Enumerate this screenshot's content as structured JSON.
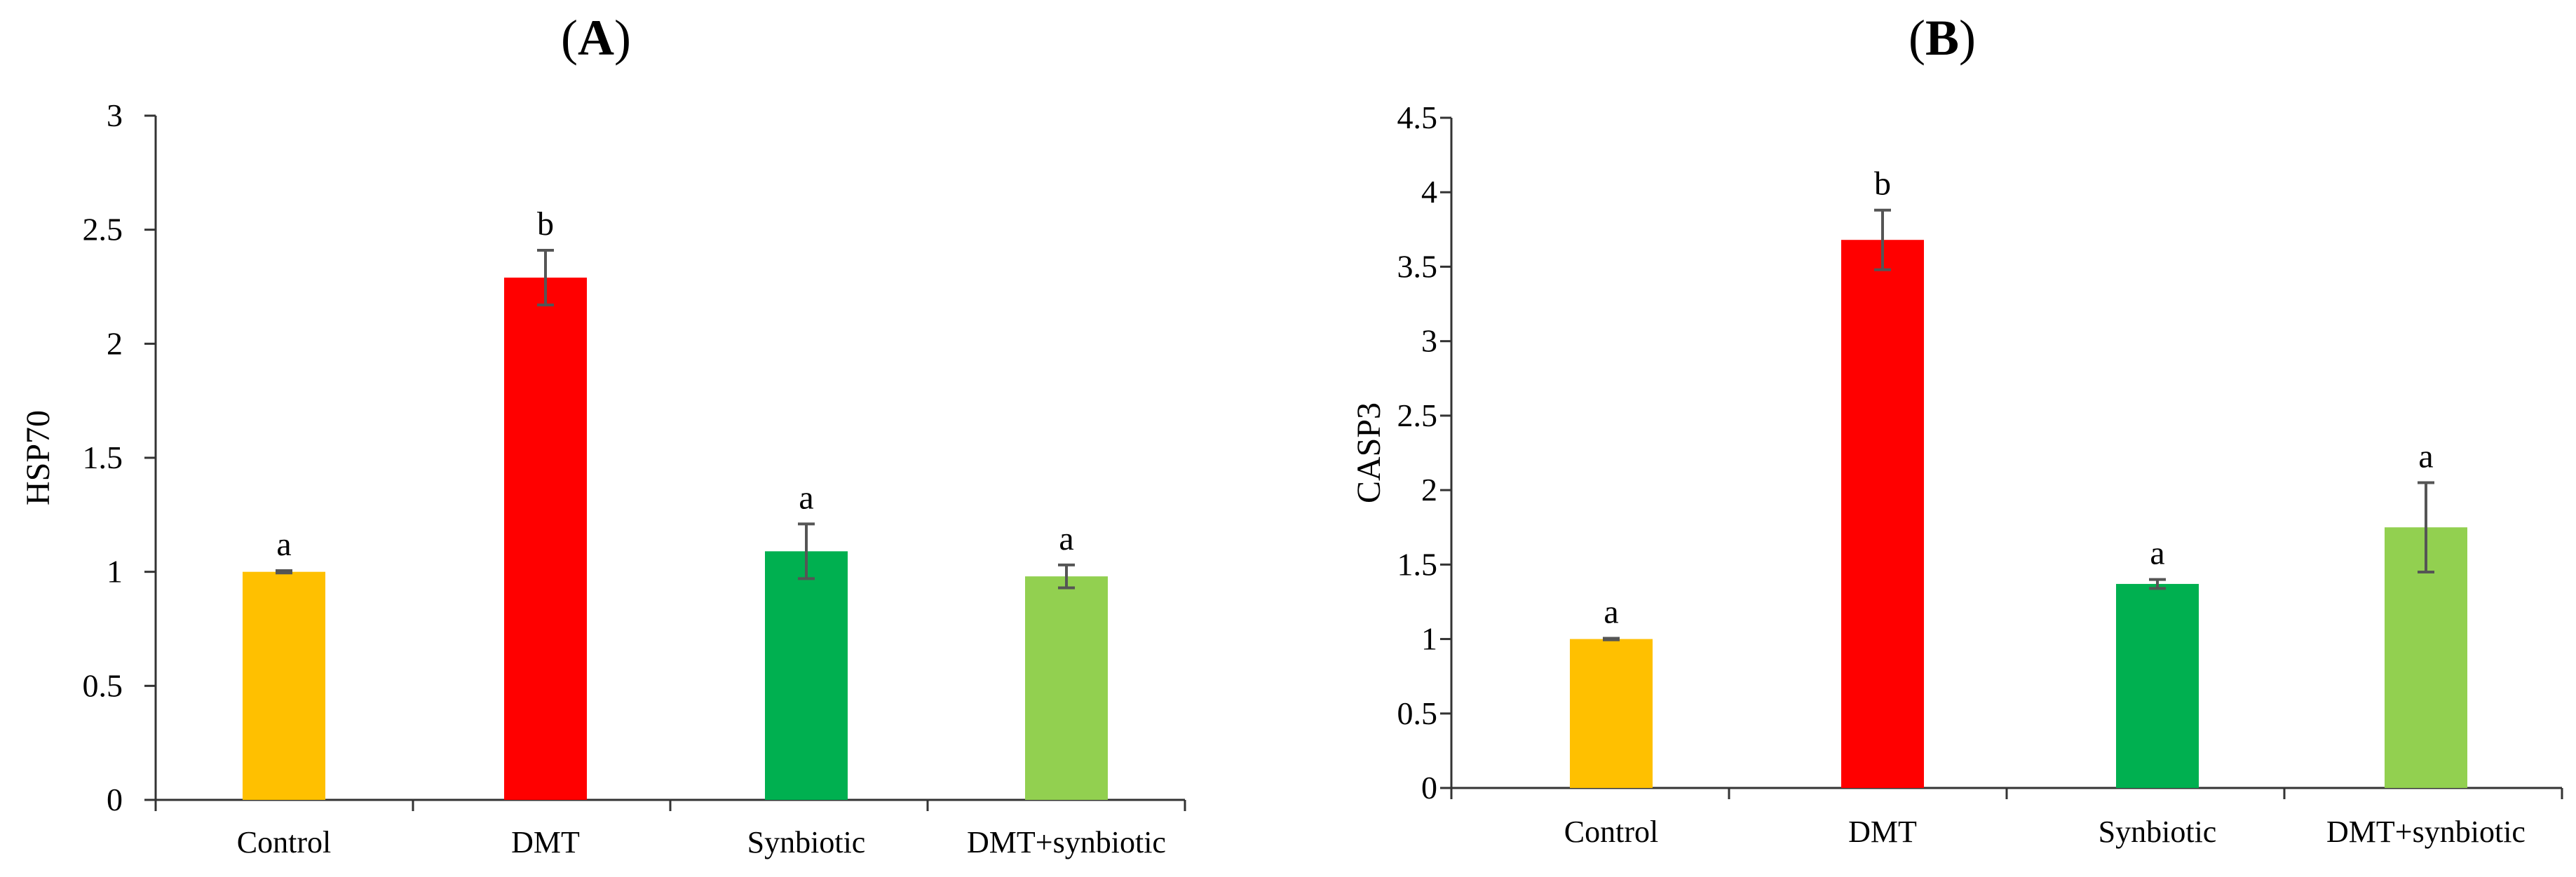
{
  "chart_data": [
    {
      "type": "bar",
      "panel": "A",
      "title": "(A)",
      "ylabel": "HSP70",
      "xlabel": "",
      "ylim": [
        0,
        3
      ],
      "yticks": [
        0,
        0.5,
        1,
        1.5,
        2,
        2.5,
        3
      ],
      "ytick_labels": [
        "0",
        "0.5",
        "1",
        "1.5",
        "2",
        "2.5",
        "3"
      ],
      "grid": false,
      "legend": "none",
      "categories": [
        "Control",
        "DMT",
        "Synbiotic",
        "DMT+synbiotic"
      ],
      "values": [
        1.0,
        2.29,
        1.09,
        0.98
      ],
      "errors": [
        0.005,
        0.12,
        0.12,
        0.05
      ],
      "significance": [
        "a",
        "b",
        "a",
        "a"
      ],
      "colors": [
        "#FFC000",
        "#FF0000",
        "#00B050",
        "#92D050"
      ]
    },
    {
      "type": "bar",
      "panel": "B",
      "title": "(B)",
      "ylabel": "CASP3",
      "xlabel": "",
      "ylim": [
        0,
        4.5
      ],
      "yticks": [
        0,
        0.5,
        1,
        1.5,
        2,
        2.5,
        3,
        3.5,
        4,
        4.5
      ],
      "ytick_labels": [
        "0",
        "0.5",
        "1",
        "1.5",
        "2",
        "2.5",
        "3",
        "3.5",
        "4",
        "4.5"
      ],
      "grid": false,
      "legend": "none",
      "categories": [
        "Control",
        "DMT",
        "Synbiotic",
        "DMT+synbiotic"
      ],
      "values": [
        1.0,
        3.68,
        1.37,
        1.75
      ],
      "errors": [
        0.005,
        0.2,
        0.03,
        0.3
      ],
      "significance": [
        "a",
        "b",
        "a",
        "a"
      ],
      "colors": [
        "#FFC000",
        "#FF0000",
        "#00B050",
        "#92D050"
      ]
    }
  ]
}
